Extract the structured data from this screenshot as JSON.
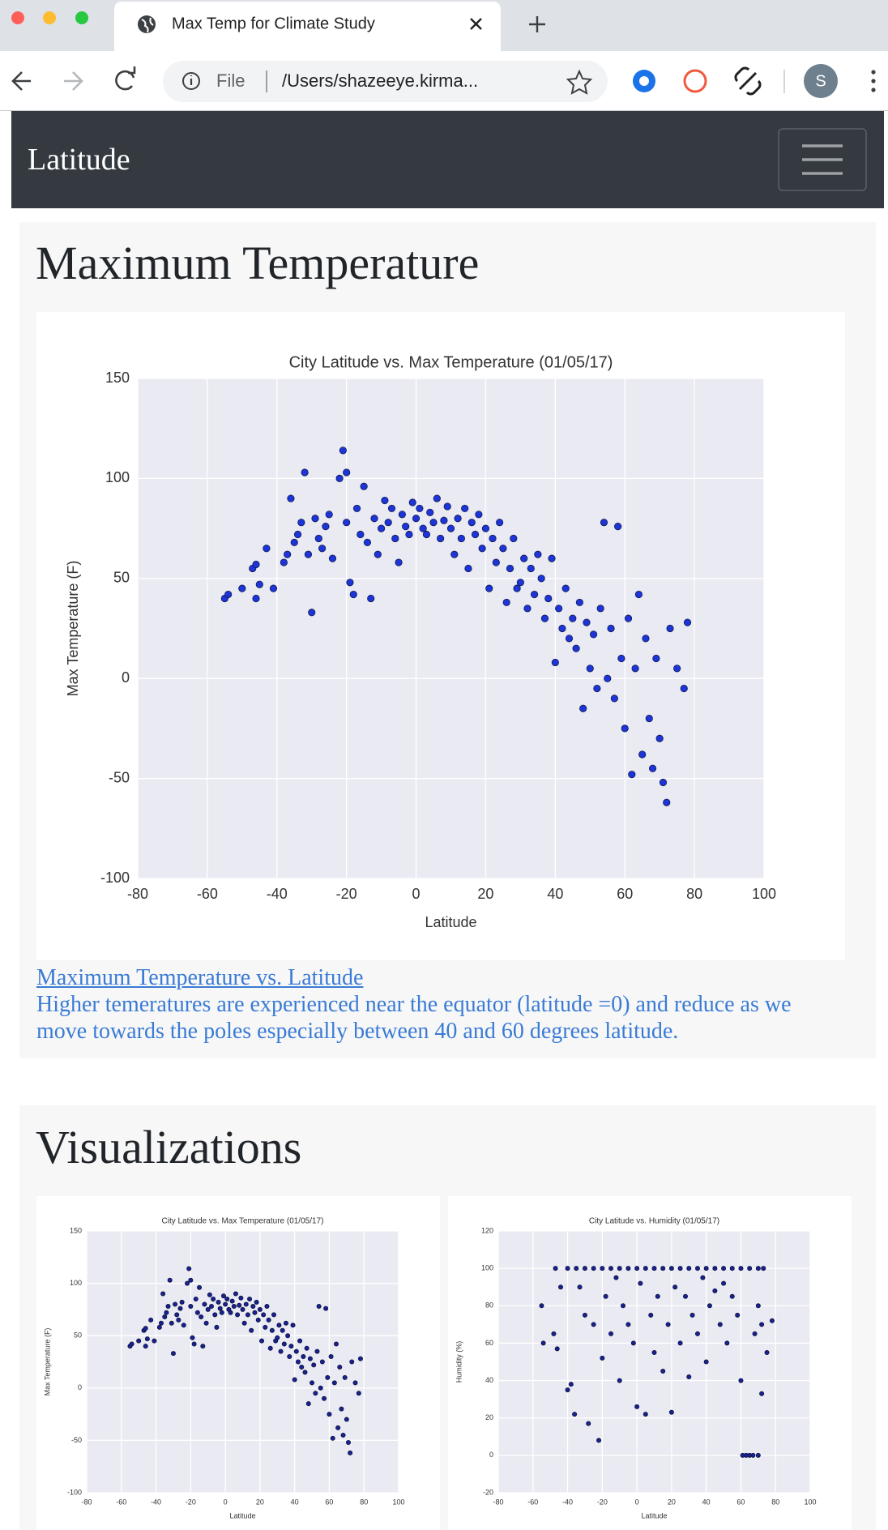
{
  "browser": {
    "tab_title": "Max Temp for Climate Study",
    "scheme": "File",
    "url": "/Users/shazeeye.kirma...",
    "avatar": "S"
  },
  "navbar": {
    "brand": "Latitude"
  },
  "sections": [
    {
      "heading": "Maximum Temperature",
      "link": "Maximum Temperature vs. Latitude",
      "description": "Higher temeratures are experienced near the equator (latitude =0) and reduce as we move towards the poles especially between 40 and 60 degrees latitude."
    },
    {
      "heading": "Visualizations"
    }
  ],
  "chart_data": [
    {
      "type": "scatter",
      "title": "City Latitude vs. Max Temperature (01/05/17)",
      "x_label": "Latitude",
      "y_label": "Max Temperature (F)",
      "x": [
        -55,
        -54,
        -50,
        -47,
        -46,
        -46,
        -45,
        -43,
        -41,
        -38,
        -37,
        -36,
        -35,
        -34,
        -33,
        -32,
        -31,
        -30,
        -29,
        -28,
        -27,
        -26,
        -25,
        -24,
        -22,
        -21,
        -20,
        -20,
        -19,
        -18,
        -17,
        -16,
        -15,
        -14,
        -13,
        -12,
        -11,
        -10,
        -9,
        -8,
        -7,
        -6,
        -5,
        -4,
        -3,
        -2,
        -1,
        0,
        1,
        2,
        3,
        4,
        5,
        6,
        7,
        8,
        9,
        10,
        11,
        12,
        13,
        14,
        15,
        16,
        17,
        18,
        19,
        20,
        21,
        22,
        23,
        24,
        25,
        26,
        27,
        28,
        29,
        30,
        31,
        32,
        33,
        34,
        35,
        36,
        37,
        38,
        39,
        40,
        41,
        42,
        43,
        44,
        45,
        46,
        47,
        48,
        49,
        50,
        51,
        52,
        53,
        54,
        55,
        56,
        57,
        58,
        59,
        60,
        61,
        62,
        63,
        64,
        65,
        66,
        67,
        68,
        69,
        70,
        71,
        72,
        73,
        75,
        77,
        78
      ],
      "values": [
        40,
        42,
        45,
        55,
        57,
        40,
        47,
        65,
        45,
        58,
        62,
        90,
        68,
        72,
        78,
        103,
        62,
        33,
        80,
        70,
        65,
        76,
        82,
        60,
        100,
        114,
        103,
        78,
        48,
        42,
        85,
        72,
        96,
        68,
        40,
        80,
        62,
        75,
        89,
        78,
        85,
        70,
        58,
        82,
        76,
        72,
        88,
        80,
        85,
        75,
        72,
        83,
        78,
        90,
        70,
        79,
        86,
        75,
        62,
        80,
        70,
        85,
        55,
        78,
        72,
        82,
        65,
        75,
        45,
        70,
        58,
        78,
        65,
        38,
        55,
        70,
        45,
        48,
        60,
        35,
        55,
        42,
        62,
        50,
        30,
        40,
        60,
        8,
        35,
        25,
        45,
        20,
        30,
        15,
        38,
        -15,
        28,
        5,
        22,
        -5,
        35,
        78,
        0,
        25,
        -10,
        76,
        10,
        -25,
        30,
        -48,
        5,
        42,
        -38,
        20,
        -20,
        -45,
        10,
        -30,
        -52,
        -62,
        25,
        5,
        -5,
        28
      ],
      "xlim": [
        -80,
        100
      ],
      "ylim": [
        -100,
        150
      ],
      "xticks": [
        -80,
        -60,
        -40,
        -20,
        0,
        20,
        40,
        60,
        80,
        100
      ],
      "yticks": [
        -100,
        -50,
        0,
        50,
        100,
        150
      ],
      "color": "#1d35d8",
      "edgecolor": "#101a50",
      "grid": true
    },
    {
      "type": "scatter",
      "title": "City Latitude vs. Max Temperature (01/05/17)",
      "x_label": "Latitude",
      "y_label": "Max Temperature (F)",
      "x": [
        -55,
        -54,
        -50,
        -47,
        -46,
        -46,
        -45,
        -43,
        -41,
        -38,
        -37,
        -36,
        -35,
        -34,
        -33,
        -32,
        -31,
        -30,
        -29,
        -28,
        -27,
        -26,
        -25,
        -24,
        -22,
        -21,
        -20,
        -20,
        -19,
        -18,
        -17,
        -16,
        -15,
        -14,
        -13,
        -12,
        -11,
        -10,
        -9,
        -8,
        -7,
        -6,
        -5,
        -4,
        -3,
        -2,
        -1,
        0,
        1,
        2,
        3,
        4,
        5,
        6,
        7,
        8,
        9,
        10,
        11,
        12,
        13,
        14,
        15,
        16,
        17,
        18,
        19,
        20,
        21,
        22,
        23,
        24,
        25,
        26,
        27,
        28,
        29,
        30,
        31,
        32,
        33,
        34,
        35,
        36,
        37,
        38,
        39,
        40,
        41,
        42,
        43,
        44,
        45,
        46,
        47,
        48,
        49,
        50,
        51,
        52,
        53,
        54,
        55,
        56,
        57,
        58,
        59,
        60,
        61,
        62,
        63,
        64,
        65,
        66,
        67,
        68,
        69,
        70,
        71,
        72,
        73,
        75,
        77,
        78
      ],
      "values": [
        40,
        42,
        45,
        55,
        57,
        40,
        47,
        65,
        45,
        58,
        62,
        90,
        68,
        72,
        78,
        103,
        62,
        33,
        80,
        70,
        65,
        76,
        82,
        60,
        100,
        114,
        103,
        78,
        48,
        42,
        85,
        72,
        96,
        68,
        40,
        80,
        62,
        75,
        89,
        78,
        85,
        70,
        58,
        82,
        76,
        72,
        88,
        80,
        85,
        75,
        72,
        83,
        78,
        90,
        70,
        79,
        86,
        75,
        62,
        80,
        70,
        85,
        55,
        78,
        72,
        82,
        65,
        75,
        45,
        70,
        58,
        78,
        65,
        38,
        55,
        70,
        45,
        48,
        60,
        35,
        55,
        42,
        62,
        50,
        30,
        40,
        60,
        8,
        35,
        25,
        45,
        20,
        30,
        15,
        38,
        -15,
        28,
        5,
        22,
        -5,
        35,
        78,
        0,
        25,
        -10,
        76,
        10,
        -25,
        30,
        -48,
        5,
        42,
        -38,
        20,
        -20,
        -45,
        10,
        -30,
        -52,
        -62,
        25,
        5,
        -5,
        28
      ],
      "xlim": [
        -80,
        100
      ],
      "ylim": [
        -100,
        150
      ],
      "xticks": [
        -80,
        -60,
        -40,
        -20,
        0,
        20,
        40,
        60,
        80,
        100
      ],
      "yticks": [
        -100,
        -50,
        0,
        50,
        100,
        150
      ],
      "color": "#1a2290",
      "edgecolor": "#0b1040",
      "grid": true
    },
    {
      "type": "scatter",
      "title": "City Latitude vs. Humidity (01/05/17)",
      "x_label": "Latitude",
      "y_label": "Humidity (%)",
      "x": [
        -47,
        -40,
        -35,
        -30,
        -25,
        -20,
        -15,
        -10,
        -5,
        0,
        5,
        10,
        15,
        20,
        25,
        30,
        35,
        40,
        45,
        50,
        55,
        60,
        65,
        70,
        73,
        -55,
        -54,
        -48,
        -46,
        -44,
        -40,
        -38,
        -36,
        -33,
        -30,
        -28,
        -25,
        -22,
        -20,
        -18,
        -15,
        -12,
        -10,
        -8,
        -5,
        -2,
        0,
        2,
        5,
        8,
        10,
        12,
        15,
        18,
        20,
        22,
        25,
        28,
        30,
        32,
        35,
        38,
        40,
        42,
        45,
        48,
        50,
        52,
        55,
        58,
        60,
        61,
        63,
        65,
        67,
        68,
        70,
        70,
        72,
        72,
        75,
        78
      ],
      "values": [
        100,
        100,
        100,
        100,
        100,
        100,
        100,
        100,
        100,
        100,
        100,
        100,
        100,
        100,
        100,
        100,
        100,
        100,
        100,
        100,
        100,
        100,
        100,
        100,
        100,
        80,
        60,
        65,
        57,
        90,
        35,
        38,
        22,
        90,
        75,
        17,
        70,
        8,
        52,
        85,
        65,
        95,
        40,
        80,
        70,
        60,
        26,
        92,
        22,
        75,
        55,
        85,
        45,
        70,
        23,
        90,
        60,
        85,
        42,
        75,
        65,
        95,
        50,
        80,
        88,
        70,
        92,
        60,
        85,
        75,
        40,
        0,
        0,
        0,
        0,
        65,
        0,
        80,
        33,
        70,
        55,
        72
      ],
      "xlim": [
        -80,
        100
      ],
      "ylim": [
        -20,
        120
      ],
      "xticks": [
        -80,
        -60,
        -40,
        -20,
        0,
        20,
        40,
        60,
        80,
        100
      ],
      "yticks": [
        -20,
        0,
        20,
        40,
        60,
        80,
        100,
        120
      ],
      "color": "#1a2290",
      "edgecolor": "#0b1040",
      "grid": true
    }
  ]
}
